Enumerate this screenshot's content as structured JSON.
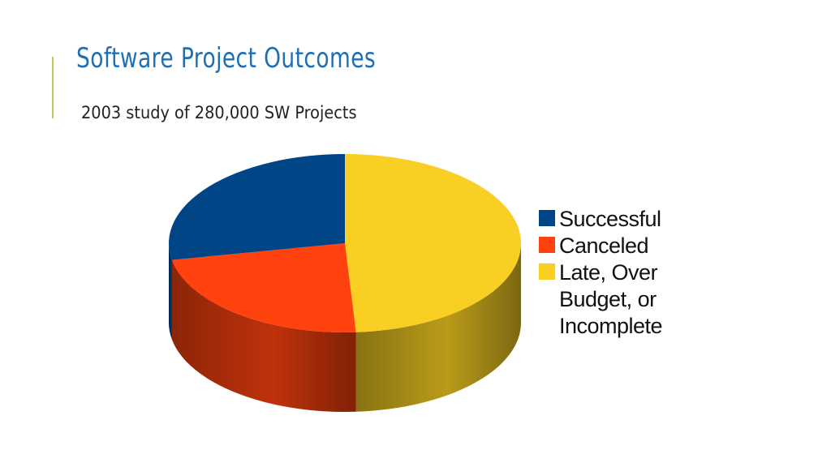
{
  "slide": {
    "title": "Software Project Outcomes",
    "subtitle": "2003 study of 280,000 SW Projects"
  },
  "chart_data": {
    "type": "pie",
    "title": "",
    "three_d": true,
    "legend_position": "right",
    "series": [
      {
        "label": "Successful",
        "value": 28,
        "color": "#004586"
      },
      {
        "label": "Canceled",
        "value": 23,
        "color": "#ff420e"
      },
      {
        "label": "Late, Over Budget, or Incomplete",
        "value": 49,
        "color": "#f8cf22"
      }
    ],
    "legend": [
      {
        "label_lines": [
          "Successful"
        ],
        "color": "#004586"
      },
      {
        "label_lines": [
          "Canceled"
        ],
        "color": "#ff420e"
      },
      {
        "label_lines": [
          "Late, Over",
          "Budget, or",
          "Incomplete"
        ],
        "color": "#f8cf22"
      }
    ]
  }
}
